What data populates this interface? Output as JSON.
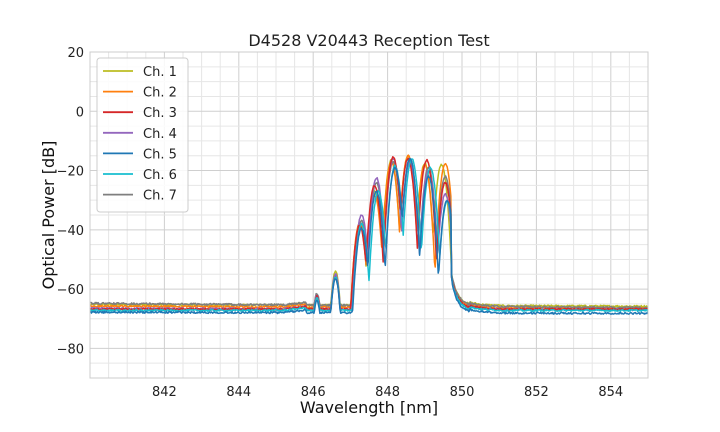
{
  "chart_data": {
    "type": "line",
    "title": "D4528 V20443 Reception Test",
    "xlabel": "Wavelength [nm]",
    "ylabel": "Optical Power [dB]",
    "xlim": [
      840.0,
      855.0
    ],
    "ylim": [
      -90,
      20
    ],
    "xticks": [
      842,
      844,
      846,
      848,
      850,
      852,
      854
    ],
    "xtick_labels": [
      "842",
      "844",
      "846",
      "848",
      "850",
      "852",
      "854"
    ],
    "yticks": [
      -80,
      -60,
      -40,
      -20,
      0,
      20
    ],
    "ytick_labels": [
      "−80",
      "−60",
      "−40",
      "−20",
      "0",
      "20"
    ],
    "grid": true,
    "legend_position": "top-left",
    "series": [
      {
        "name": "Ch. 1",
        "color": "#bcbd22",
        "floor": -65.2,
        "floor_end": -65.8,
        "peaks": [
          [
            846.1,
            -62.5
          ],
          [
            846.6,
            -54.0
          ],
          [
            847.25,
            -38.0
          ],
          [
            847.65,
            -27.0
          ],
          [
            848.1,
            -16.5
          ],
          [
            848.55,
            -15.0
          ],
          [
            849.0,
            -17.5
          ],
          [
            849.45,
            -18.0
          ]
        ]
      },
      {
        "name": "Ch. 2",
        "color": "#ff7f0e",
        "floor": -65.8,
        "floor_end": -66.5,
        "peaks": [
          [
            846.1,
            -63.0
          ],
          [
            846.6,
            -55.5
          ],
          [
            847.25,
            -37.5
          ],
          [
            847.65,
            -28.5
          ],
          [
            848.1,
            -17.0
          ],
          [
            848.55,
            -15.0
          ],
          [
            849.0,
            -18.0
          ],
          [
            849.55,
            -17.5
          ]
        ]
      },
      {
        "name": "Ch. 3",
        "color": "#d62728",
        "floor": -66.8,
        "floor_end": -66.8,
        "peaks": [
          [
            846.1,
            -62.5
          ],
          [
            846.6,
            -56.0
          ],
          [
            847.25,
            -38.5
          ],
          [
            847.65,
            -25.0
          ],
          [
            848.15,
            -15.5
          ],
          [
            848.55,
            -16.0
          ],
          [
            849.05,
            -16.5
          ],
          [
            849.55,
            -24.0
          ]
        ]
      },
      {
        "name": "Ch. 4",
        "color": "#9467bd",
        "floor": -66.5,
        "floor_end": -67.0,
        "peaks": [
          [
            846.1,
            -62.0
          ],
          [
            846.6,
            -55.0
          ],
          [
            847.3,
            -35.0
          ],
          [
            847.7,
            -22.5
          ],
          [
            848.15,
            -16.0
          ],
          [
            848.6,
            -17.0
          ],
          [
            849.1,
            -20.0
          ],
          [
            849.55,
            -28.0
          ]
        ]
      },
      {
        "name": "Ch. 5",
        "color": "#1f77b4",
        "floor": -67.8,
        "floor_end": -68.2,
        "peaks": [
          [
            846.1,
            -64.0
          ],
          [
            846.6,
            -56.5
          ],
          [
            847.3,
            -39.5
          ],
          [
            847.7,
            -27.0
          ],
          [
            848.2,
            -19.0
          ],
          [
            848.6,
            -16.0
          ],
          [
            849.1,
            -22.0
          ],
          [
            849.6,
            -30.0
          ]
        ]
      },
      {
        "name": "Ch. 6",
        "color": "#17becf",
        "floor": -67.2,
        "floor_end": -67.2,
        "peaks": [
          [
            846.1,
            -63.0
          ],
          [
            846.6,
            -56.0
          ],
          [
            847.3,
            -38.0
          ],
          [
            847.75,
            -27.0
          ],
          [
            848.2,
            -18.5
          ],
          [
            848.65,
            -16.0
          ],
          [
            849.15,
            -19.0
          ],
          [
            849.6,
            -30.5
          ]
        ]
      },
      {
        "name": "Ch. 7",
        "color": "#7f7f7f",
        "floor": -64.8,
        "floor_end": -66.3,
        "peaks": [
          [
            846.1,
            -61.5
          ],
          [
            846.6,
            -55.0
          ],
          [
            847.3,
            -37.0
          ],
          [
            847.7,
            -24.0
          ],
          [
            848.15,
            -17.0
          ],
          [
            848.6,
            -16.0
          ],
          [
            849.1,
            -19.0
          ],
          [
            849.55,
            -22.0
          ]
        ]
      }
    ]
  }
}
